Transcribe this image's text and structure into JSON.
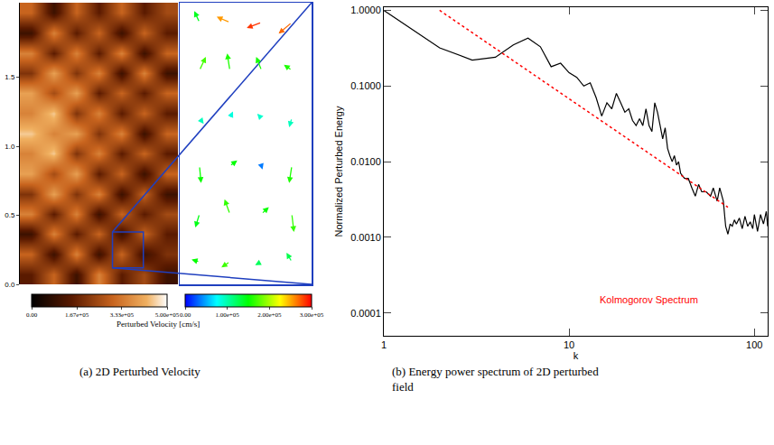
{
  "chart_data": [
    {
      "type": "heatmap",
      "caption": "(a) 2D Perturbed Velocity",
      "xlim": [
        0,
        1.28
      ],
      "ylim": [
        0,
        2.04
      ],
      "yticks": [
        {
          "value": 0,
          "label": "0.0"
        },
        {
          "value": 0.5,
          "label": "0.5"
        },
        {
          "value": 1.0,
          "label": "1.0"
        },
        {
          "value": 1.5,
          "label": "1.5"
        }
      ],
      "tick_labels": "y",
      "cells": [
        [
          150000.0,
          300000.0,
          100000.0,
          350000.0,
          150000.0,
          250000.0,
          100000.0
        ],
        [
          300000.0,
          100000.0,
          350000.0,
          100000.0,
          300000.0,
          100000.0,
          200000.0
        ],
        [
          100000.0,
          350000.0,
          150000.0,
          300000.0,
          100000.0,
          300000.0,
          150000.0
        ],
        [
          350000.0,
          150000.0,
          350000.0,
          100000.0,
          300000.0,
          150000.0,
          250000.0
        ],
        [
          200000.0,
          400000.0,
          200000.0,
          350000.0,
          100000.0,
          300000.0,
          100000.0
        ],
        [
          400000.0,
          250000.0,
          400000.0,
          150000.0,
          300000.0,
          100000.0,
          300000.0
        ],
        [
          350000.0,
          450000.0,
          200000.0,
          350000.0,
          150000.0,
          300000.0,
          150000.0
        ],
        [
          450000.0,
          350000.0,
          400000.0,
          200000.0,
          350000.0,
          100000.0,
          300000.0
        ],
        [
          350000.0,
          450000.0,
          200000.0,
          350000.0,
          150000.0,
          300000.0,
          150000.0
        ],
        [
          400000.0,
          250000.0,
          400000.0,
          150000.0,
          300000.0,
          150000.0,
          300000.0
        ],
        [
          200000.0,
          400000.0,
          200000.0,
          350000.0,
          100000.0,
          350000.0,
          100000.0
        ],
        [
          350000.0,
          150000.0,
          350000.0,
          150000.0,
          350000.0,
          100000.0,
          300000.0
        ],
        [
          100000.0,
          350000.0,
          150000.0,
          300000.0,
          100000.0,
          300000.0,
          150000.0
        ],
        [
          300000.0,
          100000.0,
          300000.0,
          150000.0,
          300000.0,
          150000.0,
          250000.0
        ]
      ],
      "colorbar": {
        "range": [
          0,
          500000
        ],
        "ticks": [
          {
            "value": 0,
            "label": "0.00"
          },
          {
            "value": 167000,
            "label": "1.67e+05"
          },
          {
            "value": 333000,
            "label": "3.33e+05"
          },
          {
            "value": 500000,
            "label": "5.00e+05"
          }
        ]
      },
      "colorbar_title": "Perturbed Velocity [cm/s]",
      "zoom_box": {
        "x": [
          0.75,
          1.0
        ],
        "y": [
          0.12,
          0.38
        ]
      },
      "inset": {
        "type": "vector",
        "xlim": [
          0,
          1
        ],
        "ylim": [
          0,
          1
        ],
        "tick_labels": false,
        "vectors": [
          {
            "x": 0.15,
            "y": 0.93,
            "u": -100000.0,
            "v": 100000.0
          },
          {
            "x": 0.38,
            "y": 0.93,
            "u": -250000.0,
            "v": 50000.0
          },
          {
            "x": 0.62,
            "y": 0.93,
            "u": -280000.0,
            "v": -50000.0
          },
          {
            "x": 0.85,
            "y": 0.93,
            "u": -250000.0,
            "v": -100000.0
          },
          {
            "x": 0.15,
            "y": 0.76,
            "u": 120000.0,
            "v": 120000.0
          },
          {
            "x": 0.38,
            "y": 0.76,
            "u": -50000.0,
            "v": 150000.0
          },
          {
            "x": 0.62,
            "y": 0.76,
            "u": -100000.0,
            "v": 120000.0
          },
          {
            "x": 0.85,
            "y": 0.76,
            "u": -150000.0,
            "v": 50000.0
          },
          {
            "x": 0.15,
            "y": 0.59,
            "u": 80000.0,
            "v": -50000.0
          },
          {
            "x": 0.38,
            "y": 0.59,
            "u": 60000.0,
            "v": 60000.0
          },
          {
            "x": 0.62,
            "y": 0.59,
            "u": -80000.0,
            "v": 40000.0
          },
          {
            "x": 0.85,
            "y": 0.59,
            "u": -50000.0,
            "v": -80000.0
          },
          {
            "x": 0.15,
            "y": 0.42,
            "u": 30000.0,
            "v": -150000.0
          },
          {
            "x": 0.38,
            "y": 0.42,
            "u": 140000.0,
            "v": 50000.0
          },
          {
            "x": 0.62,
            "y": 0.42,
            "u": 20000.0,
            "v": -30000.0
          },
          {
            "x": 0.85,
            "y": 0.42,
            "u": -50000.0,
            "v": -150000.0
          },
          {
            "x": 0.15,
            "y": 0.25,
            "u": -80000.0,
            "v": -120000.0
          },
          {
            "x": 0.38,
            "y": 0.25,
            "u": -100000.0,
            "v": 130000.0
          },
          {
            "x": 0.62,
            "y": 0.25,
            "u": 140000.0,
            "v": 60000.0
          },
          {
            "x": 0.85,
            "y": 0.25,
            "u": 40000.0,
            "v": -160000.0
          },
          {
            "x": 0.15,
            "y": 0.08,
            "u": -150000.0,
            "v": 20000.0
          },
          {
            "x": 0.38,
            "y": 0.08,
            "u": -160000.0,
            "v": -50000.0
          },
          {
            "x": 0.62,
            "y": 0.08,
            "u": -120000.0,
            "v": -30000.0
          },
          {
            "x": 0.85,
            "y": 0.08,
            "u": -100000.0,
            "v": 80000.0
          }
        ],
        "colorbar": {
          "range": [
            0,
            300000
          ],
          "ticks": [
            {
              "value": 0,
              "label": "0.00"
            },
            {
              "value": 100000,
              "label": "1.00e+05"
            },
            {
              "value": 200000,
              "label": "2.00e+05"
            },
            {
              "value": 300000,
              "label": "3.00e+05"
            }
          ]
        }
      }
    },
    {
      "type": "line",
      "caption": "(b) Energy power spectrum of 2D perturbed field",
      "xlabel": "k",
      "ylabel": "Normalized Perturbed Energy",
      "log": true,
      "grid": false,
      "xlim": [
        1,
        118
      ],
      "ylim": [
        5e-05,
        1.1
      ],
      "xticks": [
        1,
        10,
        100
      ],
      "yticks": [
        {
          "value": 0.0001,
          "label": "0.0001"
        },
        {
          "value": 0.001,
          "label": "0.0010"
        },
        {
          "value": 0.01,
          "label": "0.0100"
        },
        {
          "value": 0.1,
          "label": "0.1000"
        },
        {
          "value": 1,
          "label": "1.0000"
        }
      ],
      "series": [
        {
          "color": "#000000",
          "line_style": "solid",
          "x": [
            1,
            2,
            3,
            4,
            5,
            6,
            7,
            8,
            9,
            10,
            11,
            12,
            13,
            14,
            15,
            16,
            17,
            18,
            19,
            20,
            21,
            22,
            23,
            24,
            25,
            26,
            27,
            28,
            29,
            30,
            31,
            32,
            33,
            34,
            35,
            36,
            37,
            38,
            39,
            40,
            42,
            44,
            46,
            48,
            50,
            52,
            55,
            58,
            60,
            63,
            65,
            68,
            70,
            72,
            74,
            76,
            78,
            80,
            83,
            86,
            89,
            92,
            95,
            98,
            100,
            104,
            108,
            112,
            116,
            118
          ],
          "values": [
            1.0,
            0.32,
            0.22,
            0.24,
            0.35,
            0.43,
            0.33,
            0.18,
            0.2,
            0.15,
            0.13,
            0.1,
            0.11,
            0.07,
            0.04,
            0.06,
            0.05,
            0.08,
            0.06,
            0.045,
            0.05,
            0.035,
            0.03,
            0.037,
            0.03,
            0.05,
            0.03,
            0.025,
            0.06,
            0.045,
            0.03,
            0.02,
            0.028,
            0.015,
            0.012,
            0.01,
            0.012,
            0.009,
            0.01,
            0.007,
            0.006,
            0.006,
            0.0045,
            0.0035,
            0.005,
            0.004,
            0.004,
            0.0035,
            0.0045,
            0.003,
            0.0045,
            0.003,
            0.0014,
            0.0011,
            0.0015,
            0.0014,
            0.0017,
            0.0015,
            0.0018,
            0.0013,
            0.0019,
            0.0014,
            0.0016,
            0.0013,
            0.002,
            0.0012,
            0.002,
            0.0015,
            0.0022,
            0.0014
          ]
        },
        {
          "color": "#ff0000",
          "line_style": "dot",
          "x": [
            2,
            72
          ],
          "values": [
            1.0,
            0.0025
          ]
        }
      ],
      "annotations": [
        {
          "text": "Kolmogorov Spectrum",
          "x": 27,
          "y": 0.00015,
          "color": "#ff0000"
        }
      ]
    }
  ]
}
